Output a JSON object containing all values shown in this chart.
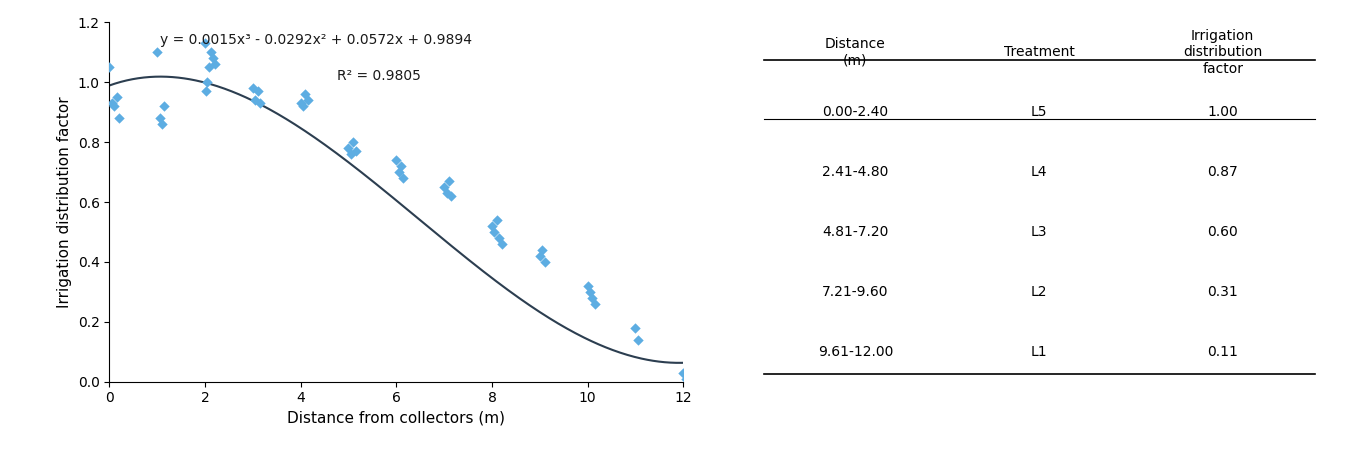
{
  "scatter_x": [
    0.0,
    0.05,
    0.1,
    0.15,
    0.2,
    1.0,
    1.05,
    1.1,
    1.15,
    2.0,
    2.02,
    2.05,
    2.08,
    2.12,
    2.16,
    2.2,
    3.0,
    3.05,
    3.1,
    3.15,
    4.0,
    4.05,
    4.1,
    4.15,
    5.0,
    5.05,
    5.1,
    5.15,
    6.0,
    6.05,
    6.1,
    6.15,
    7.0,
    7.05,
    7.1,
    7.15,
    8.0,
    8.05,
    8.1,
    8.15,
    8.2,
    9.0,
    9.05,
    9.1,
    10.0,
    10.05,
    10.1,
    10.15,
    11.0,
    11.05,
    12.0,
    12.05
  ],
  "scatter_y": [
    1.05,
    0.93,
    0.92,
    0.95,
    0.88,
    1.1,
    0.88,
    0.86,
    0.92,
    1.13,
    0.97,
    1.0,
    1.05,
    1.1,
    1.08,
    1.06,
    0.98,
    0.94,
    0.97,
    0.93,
    0.93,
    0.92,
    0.96,
    0.94,
    0.78,
    0.76,
    0.8,
    0.77,
    0.74,
    0.7,
    0.72,
    0.68,
    0.65,
    0.63,
    0.67,
    0.62,
    0.52,
    0.5,
    0.54,
    0.48,
    0.46,
    0.42,
    0.44,
    0.4,
    0.32,
    0.3,
    0.28,
    0.26,
    0.18,
    0.14,
    0.03,
    0.01
  ],
  "poly_coeffs": [
    0.0015,
    -0.0292,
    0.0572,
    0.9894
  ],
  "equation_text": "y = 0.0015x³ - 0.0292x² + 0.0572x + 0.9894",
  "r2_text": "R² = 0.9805",
  "xlabel": "Distance from collectors (m)",
  "ylabel": "Irrigation distribution factor",
  "xlim": [
    0,
    12
  ],
  "ylim": [
    0.0,
    1.2
  ],
  "xticks": [
    0,
    2,
    4,
    6,
    8,
    10,
    12
  ],
  "yticks": [
    0.0,
    0.2,
    0.4,
    0.6,
    0.8,
    1.0,
    1.2
  ],
  "scatter_color": "#5DADE2",
  "line_color": "#2C3E50",
  "table_col_labels": [
    "Distance\n(m)",
    "Treatment",
    "Irrigation\ndistribution\nfactor"
  ],
  "table_rows": [
    [
      "0.00-2.40",
      "L5",
      "1.00"
    ],
    [
      "2.41-4.80",
      "L4",
      "0.87"
    ],
    [
      "4.81-7.20",
      "L3",
      "0.60"
    ],
    [
      "7.21-9.60",
      "L2",
      "0.31"
    ],
    [
      "9.61-12.00",
      "L1",
      "0.11"
    ]
  ]
}
